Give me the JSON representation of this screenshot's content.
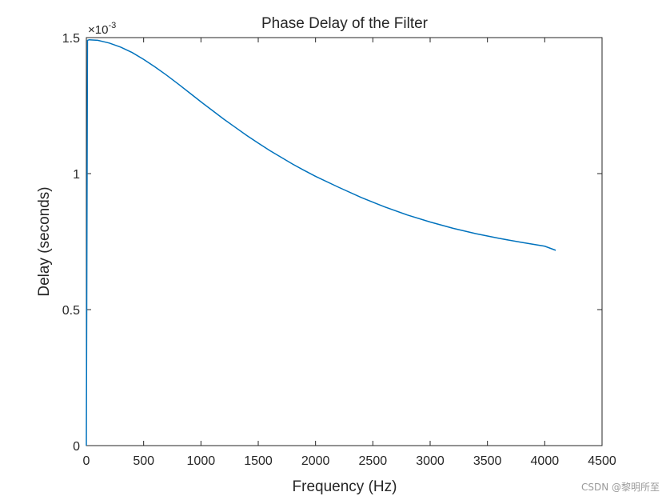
{
  "chart_data": {
    "type": "line",
    "title": "Phase Delay of the Filter",
    "xlabel": "Frequency (Hz)",
    "ylabel": "Delay (seconds)",
    "y_exponent_label": "×10",
    "y_exponent_power": "-3",
    "xlim": [
      0,
      4500
    ],
    "ylim": [
      0,
      1.5
    ],
    "grid": false,
    "line_color": "#0072BD",
    "xticks": [
      0,
      500,
      1000,
      1500,
      2000,
      2500,
      3000,
      3500,
      4000,
      4500
    ],
    "xtick_labels": [
      "0",
      "500",
      "1000",
      "1500",
      "2000",
      "2500",
      "3000",
      "3500",
      "4000",
      "4500"
    ],
    "yticks": [
      0,
      0.5,
      1,
      1.5
    ],
    "ytick_labels": [
      "0",
      "0.5",
      "1",
      "1.5"
    ],
    "series": [
      {
        "x": [
          0,
          10,
          25,
          100,
          200,
          300,
          400,
          500,
          600,
          700,
          800,
          900,
          1000,
          1100,
          1200,
          1300,
          1400,
          1500,
          1600,
          1700,
          1800,
          1900,
          2000,
          2200,
          2400,
          2600,
          2800,
          3000,
          3200,
          3400,
          3600,
          3800,
          4000,
          4096
        ],
        "values": [
          0,
          1.49,
          1.492,
          1.49,
          1.48,
          1.465,
          1.445,
          1.42,
          1.392,
          1.362,
          1.33,
          1.297,
          1.264,
          1.232,
          1.2,
          1.17,
          1.14,
          1.112,
          1.085,
          1.06,
          1.035,
          1.012,
          0.99,
          0.95,
          0.912,
          0.878,
          0.848,
          0.822,
          0.799,
          0.779,
          0.762,
          0.747,
          0.733,
          0.718
        ]
      }
    ]
  },
  "watermark": "CSDN @黎明所至"
}
